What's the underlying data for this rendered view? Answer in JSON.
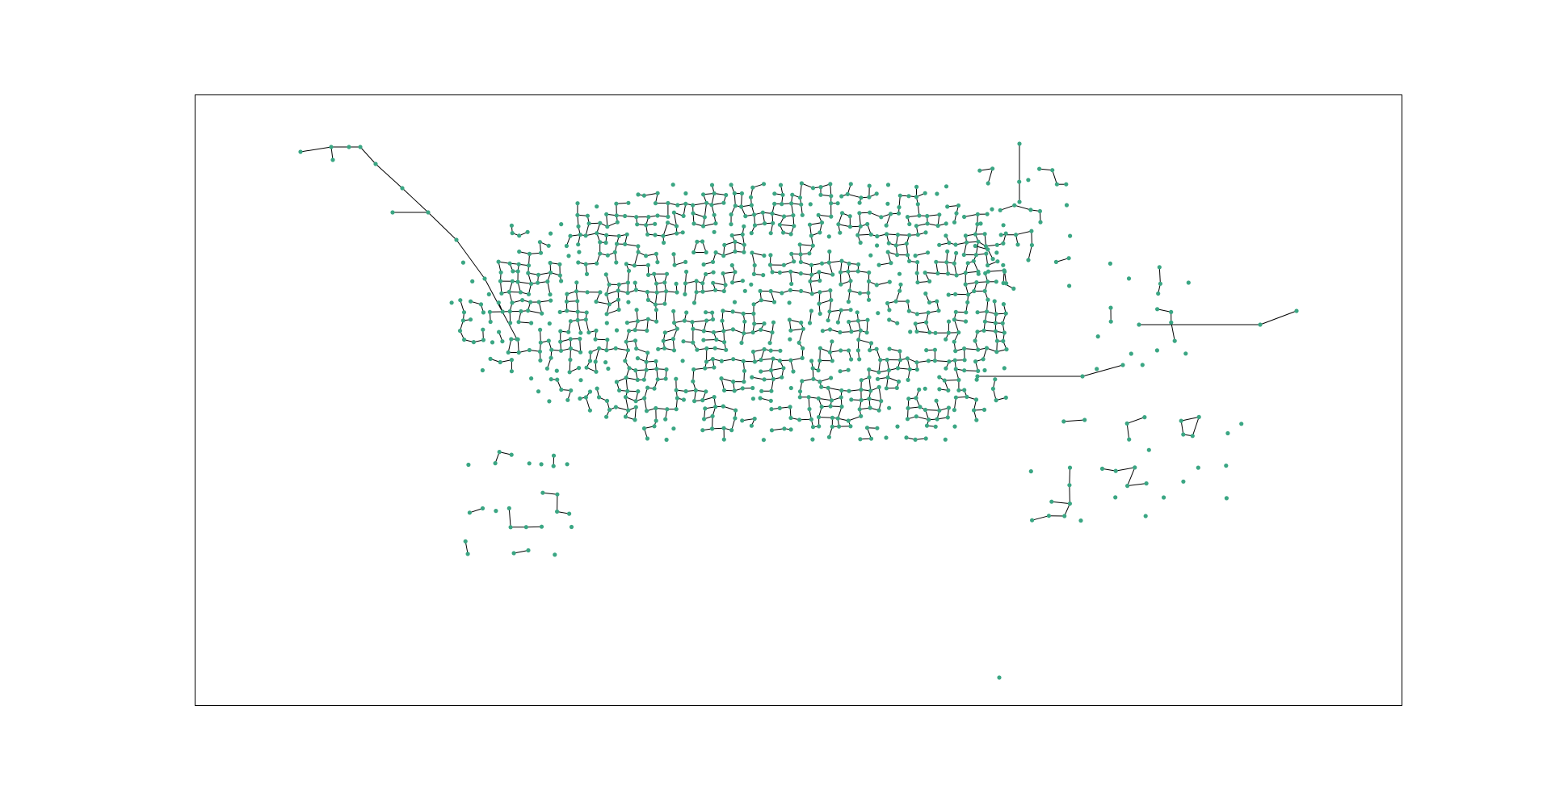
{
  "diagram": {
    "type": "network-graph",
    "frame": true,
    "colors": {
      "node_fill": "#3aa683",
      "edge_stroke": "#000000",
      "frame_stroke": "#000000",
      "background": "#ffffff"
    },
    "layout_note": "",
    "labels": []
  }
}
